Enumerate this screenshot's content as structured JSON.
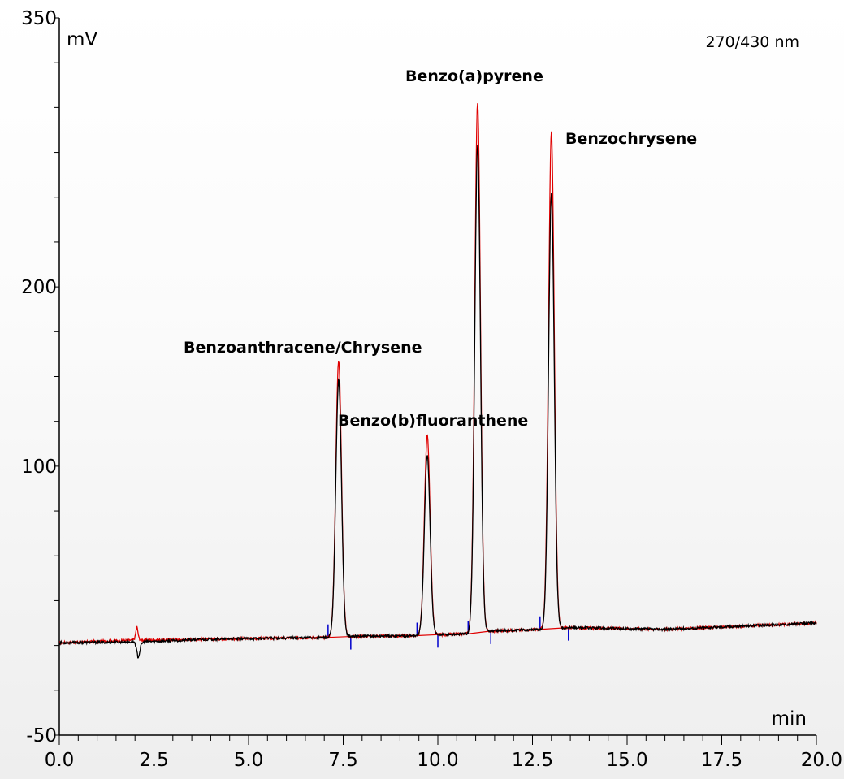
{
  "chart_data": {
    "type": "line",
    "xlabel": "min",
    "ylabel": "mV",
    "annotation": "270/430 nm",
    "xlim": [
      0,
      20
    ],
    "ylim": [
      -50,
      350
    ],
    "x_ticks": [
      "0.0",
      "2.5",
      "5.0",
      "7.5",
      "10.0",
      "12.5",
      "15.0",
      "17.5",
      "20.0"
    ],
    "y_ticks": [
      "350",
      "200",
      "100",
      "-50"
    ],
    "grid": false,
    "colors": {
      "red_trace": "#e00000",
      "black_trace": "#000000",
      "markers": "#0000cc"
    },
    "series": [
      {
        "color": "#e00000",
        "points": [
          [
            0,
            1.5
          ],
          [
            2.0,
            3
          ],
          [
            2.05,
            7
          ],
          [
            2.1,
            3
          ],
          [
            4.0,
            3.5
          ],
          [
            7.1,
            4.5
          ],
          [
            7.38,
            159
          ],
          [
            7.65,
            5
          ],
          [
            9.5,
            5.5
          ],
          [
            9.72,
            117
          ],
          [
            9.95,
            6
          ],
          [
            10.8,
            6.5
          ],
          [
            11.05,
            303
          ],
          [
            11.35,
            8
          ],
          [
            12.7,
            9
          ],
          [
            13.0,
            286
          ],
          [
            13.35,
            10
          ],
          [
            16.0,
            9
          ],
          [
            20.0,
            12.5
          ]
        ]
      },
      {
        "color": "#000000",
        "points": [
          [
            0,
            1.5
          ],
          [
            2.0,
            2
          ],
          [
            2.08,
            -2.5
          ],
          [
            2.15,
            2
          ],
          [
            4.0,
            3.5
          ],
          [
            7.1,
            4.5
          ],
          [
            7.38,
            148
          ],
          [
            7.65,
            5
          ],
          [
            9.5,
            5.5
          ],
          [
            9.72,
            106
          ],
          [
            9.95,
            6
          ],
          [
            10.8,
            6.5
          ],
          [
            11.05,
            279
          ],
          [
            11.35,
            8
          ],
          [
            12.7,
            9
          ],
          [
            13.0,
            252
          ],
          [
            13.35,
            10
          ],
          [
            16.0,
            9
          ],
          [
            20.0,
            12.5
          ]
        ]
      }
    ],
    "peak_labels": [
      {
        "text": "Benzoanthracene/Chrysene",
        "x": 7.38,
        "y": 159
      },
      {
        "text": "Benzo(b)fluoranthene",
        "x": 9.72,
        "y": 117
      },
      {
        "text": "Benzo(a)pyrene",
        "x": 11.05,
        "y": 303
      },
      {
        "text": "Benzochrysene",
        "x": 13.0,
        "y": 286
      }
    ],
    "integration_markers": [
      7.1,
      7.7,
      9.45,
      10.0,
      10.8,
      11.4,
      12.7,
      13.45
    ]
  }
}
